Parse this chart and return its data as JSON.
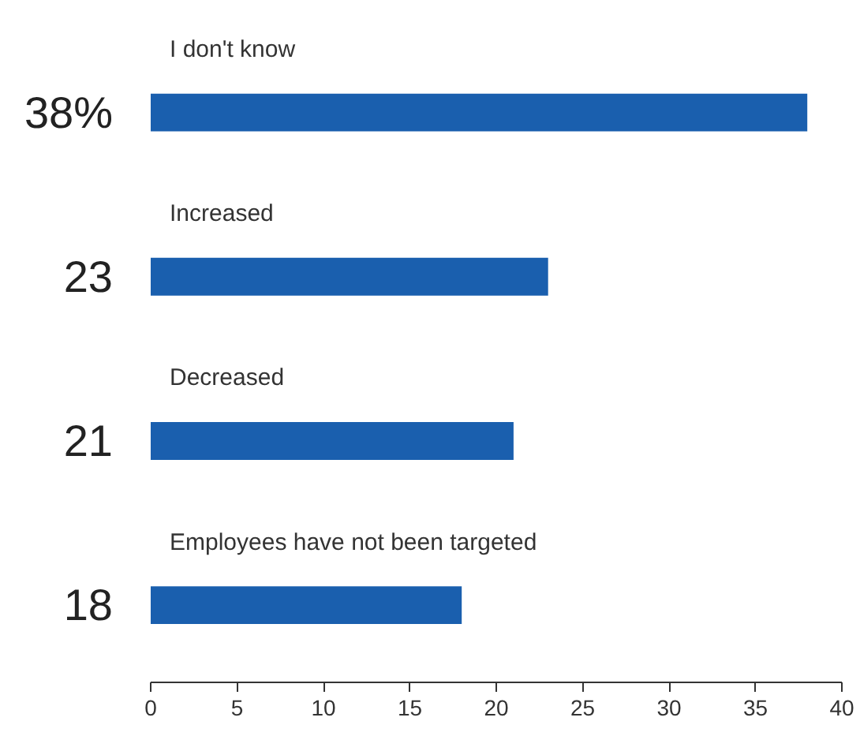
{
  "chart_data": {
    "type": "bar",
    "orientation": "horizontal",
    "categories": [
      "I don't know",
      "Increased",
      "Decreased",
      "Employees have not been targeted"
    ],
    "values": [
      38,
      23,
      21,
      18
    ],
    "value_labels": [
      "38%",
      "23",
      "21",
      "18"
    ],
    "color": "#1a5fae",
    "xlim": [
      0,
      40
    ],
    "xticks": [
      0,
      5,
      10,
      15,
      20,
      25,
      30,
      35,
      40
    ],
    "grid": false
  }
}
